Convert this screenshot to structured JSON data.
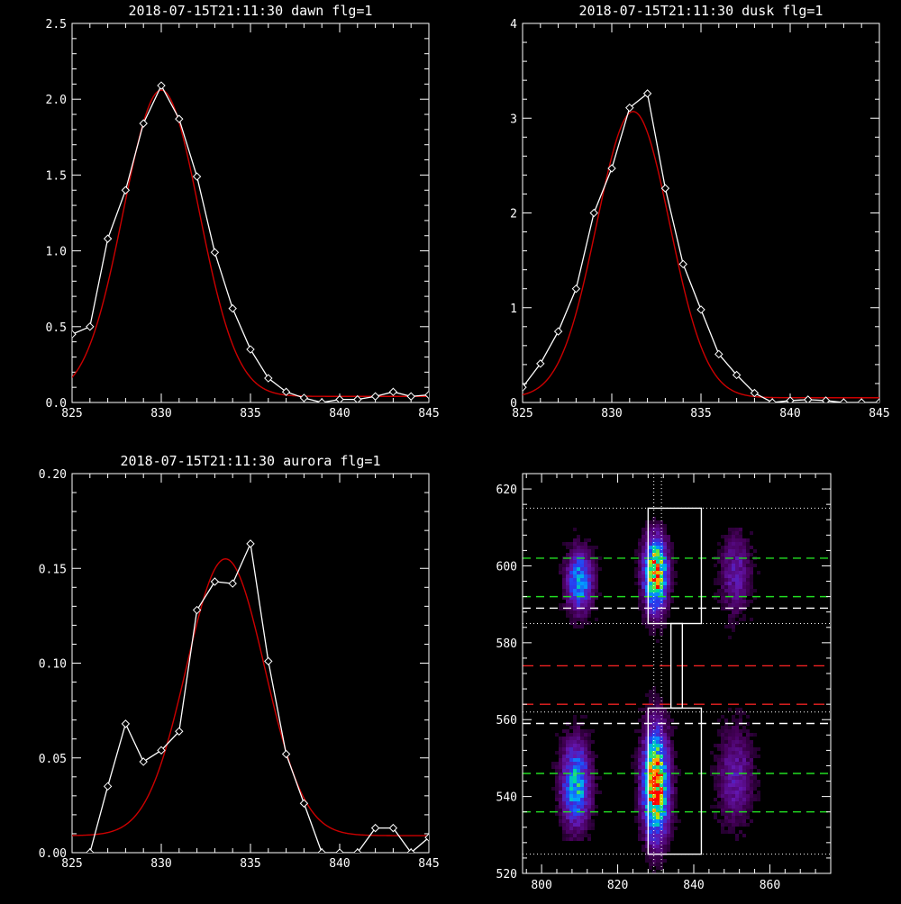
{
  "colors": {
    "background": "#000000",
    "axes": "#ffffff",
    "data_line": "#ffffff",
    "fit_line": "#cc0000",
    "green_dash": "#22dd22",
    "red_dash": "#ee2222",
    "white_dash": "#ffffff"
  },
  "chart_data": [
    {
      "type": "line",
      "title": "2018-07-15T21:11:30 dawn flg=1",
      "xlim": [
        825,
        845
      ],
      "ylim": [
        0,
        2.5
      ],
      "xticks": [
        "825",
        "830",
        "835",
        "840",
        "845"
      ],
      "yticks": [
        "0.0",
        "0.5",
        "1.0",
        "1.5",
        "2.0",
        "2.5"
      ],
      "series": [
        {
          "role": "data",
          "marker": "diamond",
          "x": [
            825,
            826,
            827,
            828,
            829,
            830,
            831,
            832,
            833,
            834,
            835,
            836,
            837,
            838,
            839,
            840,
            841,
            842,
            843,
            844,
            845
          ],
          "y": [
            0.45,
            0.5,
            1.08,
            1.4,
            1.84,
            2.09,
            1.87,
            1.49,
            0.99,
            0.62,
            0.35,
            0.16,
            0.07,
            0.03,
            0.0,
            0.02,
            0.02,
            0.04,
            0.07,
            0.04,
            0.05
          ]
        },
        {
          "role": "fit",
          "gaussian": {
            "amp": 2.02,
            "center": 830.0,
            "sigma": 2.12,
            "offset": 0.04
          }
        }
      ]
    },
    {
      "type": "line",
      "title": "2018-07-15T21:11:30 dusk flg=1",
      "xlim": [
        825,
        845
      ],
      "ylim": [
        0,
        4
      ],
      "xticks": [
        "825",
        "830",
        "835",
        "840",
        "845"
      ],
      "yticks": [
        "0",
        "1",
        "2",
        "3",
        "4"
      ],
      "series": [
        {
          "role": "data",
          "marker": "diamond",
          "x": [
            825,
            826,
            827,
            828,
            829,
            830,
            831,
            832,
            833,
            834,
            835,
            836,
            837,
            838,
            839,
            840,
            841,
            842,
            843,
            844,
            845
          ],
          "y": [
            0.16,
            0.41,
            0.75,
            1.2,
            2.0,
            2.47,
            3.11,
            3.26,
            2.26,
            1.46,
            0.98,
            0.51,
            0.29,
            0.1,
            0.0,
            0.02,
            0.03,
            0.02,
            0.0,
            0.0,
            0.0
          ]
        },
        {
          "role": "fit",
          "gaussian": {
            "amp": 3.02,
            "center": 831.2,
            "sigma": 2.05,
            "offset": 0.05
          }
        }
      ]
    },
    {
      "type": "line",
      "title": "2018-07-15T21:11:30 aurora flg=1",
      "xlim": [
        825,
        845
      ],
      "ylim": [
        0,
        0.2
      ],
      "xticks": [
        "825",
        "830",
        "835",
        "840",
        "845"
      ],
      "yticks": [
        "0.00",
        "0.05",
        "0.10",
        "0.15",
        "0.20"
      ],
      "series": [
        {
          "role": "data",
          "marker": "diamond",
          "x": [
            826,
            827,
            828,
            829,
            830,
            831,
            832,
            833,
            834,
            835,
            836,
            837,
            838,
            839,
            840,
            841,
            842,
            843,
            844,
            845
          ],
          "y": [
            0.0,
            0.035,
            0.068,
            0.048,
            0.054,
            0.064,
            0.128,
            0.143,
            0.142,
            0.163,
            0.101,
            0.052,
            0.026,
            0.0,
            0.0,
            0.0,
            0.013,
            0.013,
            0.0,
            0.008
          ]
        },
        {
          "role": "fit",
          "gaussian": {
            "amp": 0.146,
            "center": 833.6,
            "sigma": 2.2,
            "offset": 0.009
          }
        }
      ]
    },
    {
      "type": "heatmap",
      "title": "",
      "xlim": [
        795,
        876
      ],
      "ylim": [
        520,
        624
      ],
      "xticks": [
        "800",
        "820",
        "840",
        "860"
      ],
      "yticks": [
        "520",
        "540",
        "560",
        "580",
        "600",
        "620"
      ],
      "colormap": "rainbow",
      "blobs": [
        {
          "x": 830,
          "y": 598,
          "sx": 2.0,
          "sy": 6,
          "amp": 0.95
        },
        {
          "x": 830,
          "y": 543,
          "sx": 2.2,
          "sy": 9,
          "amp": 1.0
        },
        {
          "x": 810,
          "y": 596,
          "sx": 2.2,
          "sy": 5,
          "amp": 0.55
        },
        {
          "x": 809,
          "y": 543,
          "sx": 2.4,
          "sy": 7,
          "amp": 0.6
        },
        {
          "x": 851,
          "y": 598,
          "sx": 2.5,
          "sy": 7,
          "amp": 0.22
        },
        {
          "x": 851,
          "y": 545,
          "sx": 3.0,
          "sy": 8,
          "amp": 0.22
        }
      ],
      "dotted_vertical_x": [
        829.5,
        831.5
      ],
      "dotted_horizontal_y": [
        615,
        585,
        562,
        525
      ],
      "green_dashed_y": [
        602,
        592,
        546,
        536
      ],
      "white_dashed_y": [
        589,
        559
      ],
      "red_dashed_y": [
        574,
        564
      ],
      "boxes": [
        {
          "x0": 828,
          "x1": 842,
          "y0": 585,
          "y1": 615
        },
        {
          "x0": 834,
          "x1": 837,
          "y0": 563,
          "y1": 585
        },
        {
          "x0": 828,
          "x1": 842,
          "y0": 525,
          "y1": 563
        }
      ]
    }
  ]
}
